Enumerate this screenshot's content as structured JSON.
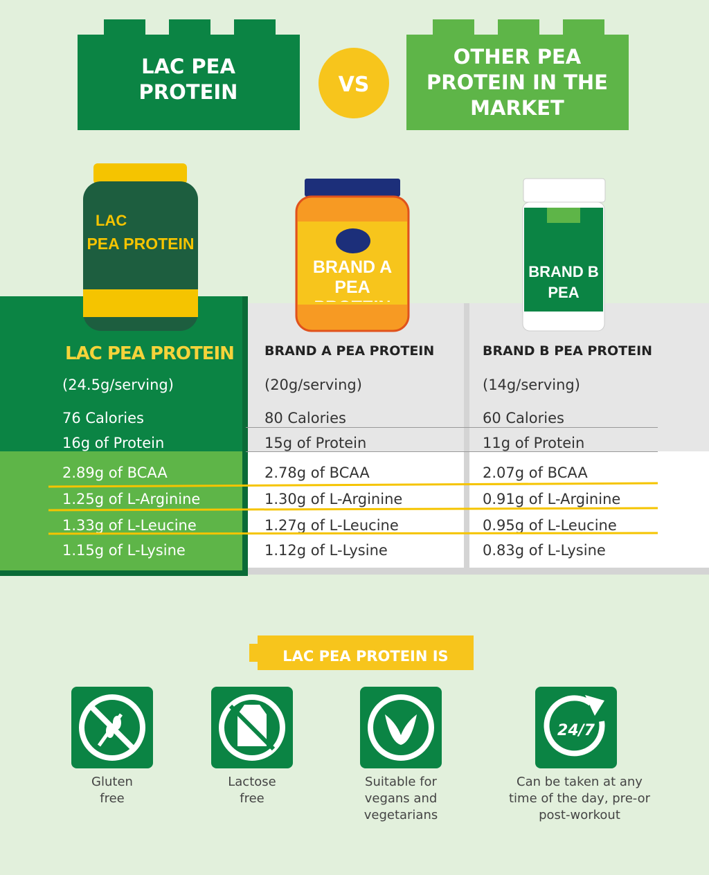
{
  "header": {
    "left_title": "LAC PEA PROTEIN",
    "vs": "VS",
    "right_title": "OTHER PEA PROTEIN IN THE MARKET"
  },
  "products": [
    {
      "image_label": "PEA PROTEIN",
      "name": "LAC PEA PROTEIN",
      "serving": "(24.5g/serving)",
      "rows": [
        "76 Calories",
        "16g of Protein",
        "2.89g of BCAA",
        "1.25g of L-Arginine",
        "1.33g of L-Leucine",
        "1.15g of L-Lysine"
      ]
    },
    {
      "image_label": "BRAND A PEA PROTEIN",
      "name": "BRAND A PEA PROTEIN",
      "serving": "(20g/serving)",
      "rows": [
        "80 Calories",
        "15g of Protein",
        "2.78g of BCAA",
        "1.30g of L-Arginine",
        "1.27g of L-Leucine",
        "1.12g of L-Lysine"
      ]
    },
    {
      "image_label": "BRAND B PEA PROTEIN",
      "name": "BRAND B PEA PROTEIN",
      "serving": "(14g/serving)",
      "rows": [
        "60 Calories",
        "11g of Protein",
        "2.07g of BCAA",
        "0.91g of L-Arginine",
        "0.95g of L-Leucine",
        "0.83g of L-Lysine"
      ]
    }
  ],
  "features": {
    "title": "LAC PEA PROTEIN IS",
    "icon_text": "24/7",
    "items": [
      "Gluten free",
      "Lactose free",
      "Suitable for vegans and vegetarians",
      "Can be taken at any time of the day, pre-or post-workout"
    ]
  }
}
